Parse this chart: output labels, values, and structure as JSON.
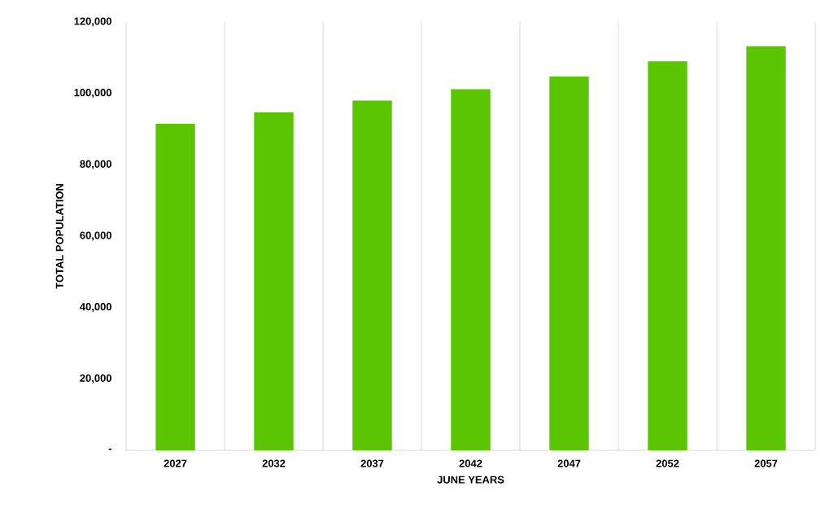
{
  "chart_data": {
    "type": "bar",
    "xlabel": "JUNE YEARS",
    "ylabel": "TOTAL POPULATION",
    "categories": [
      "2027",
      "2032",
      "2037",
      "2042",
      "2047",
      "2052",
      "2057"
    ],
    "values": [
      91500,
      94700,
      98000,
      101200,
      104700,
      109000,
      113200
    ],
    "color": "#5ac500",
    "ylim": [
      0,
      120000
    ],
    "yticks": [
      {
        "value": 0,
        "label": "-"
      },
      {
        "value": 20000,
        "label": "20,000"
      },
      {
        "value": 40000,
        "label": "40,000"
      },
      {
        "value": 60000,
        "label": "60,000"
      },
      {
        "value": 80000,
        "label": "80,000"
      },
      {
        "value": 100000,
        "label": "100,000"
      },
      {
        "value": 120000,
        "label": "120,000"
      }
    ],
    "grid": "x"
  }
}
